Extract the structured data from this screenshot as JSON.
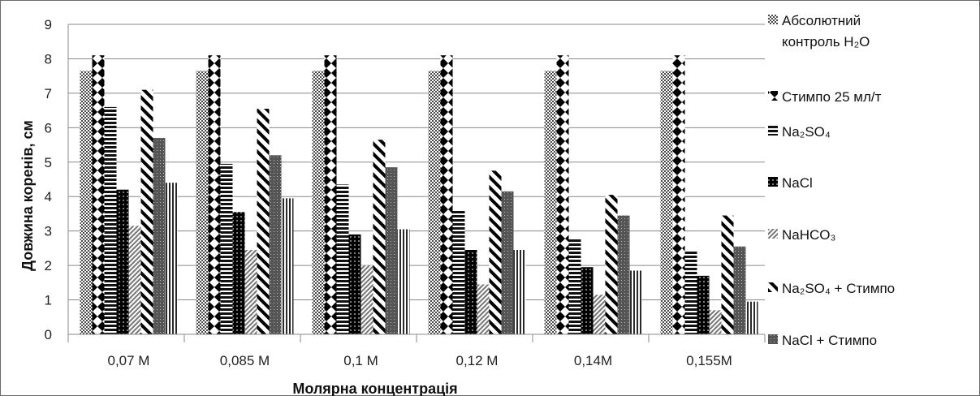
{
  "chart_data": {
    "type": "bar",
    "title": "",
    "xlabel": "Молярна концентрація",
    "ylabel": "Довжина коренів, см",
    "ylim": [
      0,
      9
    ],
    "yticks": [
      "0",
      "1",
      "2",
      "3",
      "4",
      "5",
      "6",
      "7",
      "8",
      "9"
    ],
    "grid": true,
    "legend_position": "right",
    "categories": [
      "0,07 M",
      "0,085 M",
      "0,1 M",
      "0,12 M",
      "0,14M",
      "0,155M"
    ],
    "series": [
      {
        "name": "Абсолютний контроль H₂O",
        "legend_lines": [
          "Абсолютний",
          "контроль H₂O"
        ],
        "pattern": "checker",
        "values": [
          7.65,
          7.65,
          7.65,
          7.65,
          7.65,
          7.65
        ]
      },
      {
        "name": "Стимпо 25 мл/т",
        "legend_lines": [
          "Стимпо 25 мл/т"
        ],
        "pattern": "diamond",
        "values": [
          8.1,
          8.1,
          8.1,
          8.1,
          8.1,
          8.1
        ]
      },
      {
        "name": "Na₂SO₄",
        "legend_lines": [
          "Na₂SO₄"
        ],
        "pattern": "hstripe",
        "values": [
          6.6,
          4.95,
          4.35,
          3.6,
          2.8,
          2.42
        ]
      },
      {
        "name": "NaCl",
        "legend_lines": [
          "NaCl"
        ],
        "pattern": "darkgrid",
        "values": [
          4.2,
          3.55,
          2.9,
          2.45,
          1.95,
          1.7
        ]
      },
      {
        "name": "NaHCO₃",
        "legend_lines": [
          "NaHCO₃"
        ],
        "pattern": "diagfine",
        "values": [
          3.15,
          2.45,
          2.0,
          1.45,
          1.15,
          0.7
        ]
      },
      {
        "name": "Na₂SO₄ + Стимпо",
        "legend_lines": [
          "Na₂SO₄ + Стимпо"
        ],
        "pattern": "diagwide",
        "values": [
          7.1,
          6.55,
          5.65,
          4.75,
          4.05,
          3.45
        ]
      },
      {
        "name": "NaCl + Стимпо",
        "legend_lines": [
          "NaCl + Стимпо"
        ],
        "pattern": "dots",
        "values": [
          5.7,
          5.2,
          4.85,
          4.15,
          3.45,
          2.55
        ]
      },
      {
        "name": "",
        "legend_lines": [],
        "pattern": "vstripe",
        "values": [
          4.4,
          3.95,
          3.05,
          2.45,
          1.85,
          0.95
        ]
      }
    ]
  }
}
